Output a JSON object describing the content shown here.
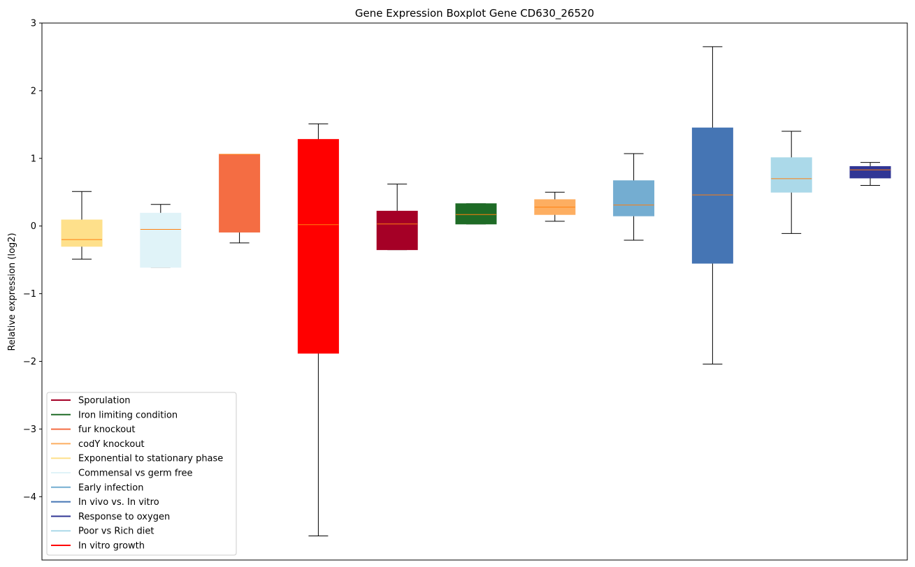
{
  "chart_data": {
    "type": "boxplot",
    "title": "Gene Expression Boxplot Gene CD630_26520",
    "xlabel": "",
    "ylabel": "Relative expression (log2)",
    "ylim": [
      -4.95,
      3.0
    ],
    "yticks": [
      3,
      2,
      1,
      0,
      -1,
      -2,
      -3,
      -4
    ],
    "ytick_labels": [
      "3",
      "2",
      "1",
      "0",
      "−1",
      "−2",
      "−3",
      "−4"
    ],
    "grid": false,
    "legend_position": "lower-left",
    "median_color": "#ff7f0e",
    "boxes": [
      {
        "label": "Exponential to stationary phase",
        "color": "#fee08b",
        "whisker_low": -0.49,
        "q1": -0.3,
        "median": -0.2,
        "q3": 0.09,
        "whisker_high": 0.51
      },
      {
        "label": "Commensal vs germ free",
        "color": "#e0f3f8",
        "whisker_low": -0.61,
        "q1": -0.61,
        "median": -0.05,
        "q3": 0.19,
        "whisker_high": 0.32
      },
      {
        "label": "fur knockout",
        "color": "#f46d43",
        "whisker_low": -0.25,
        "q1": -0.09,
        "median": 1.06,
        "q3": 1.06,
        "whisker_high": 1.06
      },
      {
        "label": "In vitro growth",
        "color": "#ff0000",
        "whisker_low": -4.58,
        "q1": -1.88,
        "median": 0.02,
        "q3": 1.28,
        "whisker_high": 1.51
      },
      {
        "label": "Sporulation",
        "color": "#a50026",
        "whisker_low": -0.35,
        "q1": -0.35,
        "median": 0.03,
        "q3": 0.22,
        "whisker_high": 0.62
      },
      {
        "label": "Iron limiting condition",
        "color": "#1e6b26",
        "whisker_low": 0.03,
        "q1": 0.03,
        "median": 0.17,
        "q3": 0.33,
        "whisker_high": 0.33
      },
      {
        "label": "codY knockout",
        "color": "#fdae61",
        "whisker_low": 0.07,
        "q1": 0.17,
        "median": 0.28,
        "q3": 0.39,
        "whisker_high": 0.5
      },
      {
        "label": "Early infection",
        "color": "#74add1",
        "whisker_low": -0.21,
        "q1": 0.15,
        "median": 0.31,
        "q3": 0.67,
        "whisker_high": 1.07
      },
      {
        "label": "In vivo vs. In vitro",
        "color": "#4575b4",
        "whisker_low": -2.04,
        "q1": -0.55,
        "median": 0.46,
        "q3": 1.45,
        "whisker_high": 2.65
      },
      {
        "label": "Poor vs Rich diet",
        "color": "#abd9e9",
        "whisker_low": -0.11,
        "q1": 0.5,
        "median": 0.7,
        "q3": 1.01,
        "whisker_high": 1.4
      },
      {
        "label": "Response to oxygen",
        "color": "#313695",
        "whisker_low": 0.6,
        "q1": 0.71,
        "median": 0.83,
        "q3": 0.88,
        "whisker_high": 0.94
      }
    ],
    "legend": [
      {
        "label": "Sporulation",
        "color": "#a50026"
      },
      {
        "label": "Iron limiting condition",
        "color": "#1e6b26"
      },
      {
        "label": "fur knockout",
        "color": "#f46d43"
      },
      {
        "label": "codY knockout",
        "color": "#fdae61"
      },
      {
        "label": "Exponential to stationary phase",
        "color": "#fee08b"
      },
      {
        "label": "Commensal vs germ free",
        "color": "#e0f3f8"
      },
      {
        "label": "Early infection",
        "color": "#74add1"
      },
      {
        "label": "In vivo vs. In vitro",
        "color": "#4575b4"
      },
      {
        "label": "Response to oxygen",
        "color": "#313695"
      },
      {
        "label": "Poor vs Rich diet",
        "color": "#abd9e9"
      },
      {
        "label": "In vitro growth",
        "color": "#ff0000"
      }
    ]
  }
}
